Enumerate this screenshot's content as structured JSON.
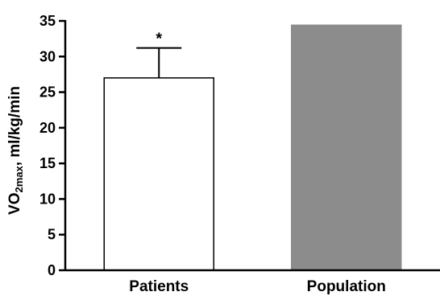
{
  "chart_data": {
    "type": "bar",
    "categories": [
      "Patients",
      "Population"
    ],
    "values": [
      27,
      34.4
    ],
    "error_upper": [
      4.2,
      null
    ],
    "annotations": [
      "*",
      ""
    ],
    "bar_colors": [
      "#ffffff",
      "#8c8c8c"
    ],
    "bar_edge_colors": [
      "#000000",
      "#8c8c8c"
    ],
    "ylabel": {
      "prefix": "VO",
      "subscript": "2max",
      "suffix": ", ml/kg/min"
    },
    "ylim": [
      0,
      35
    ],
    "yticks": [
      0,
      5,
      10,
      15,
      20,
      25,
      30,
      35
    ],
    "grid": false
  }
}
